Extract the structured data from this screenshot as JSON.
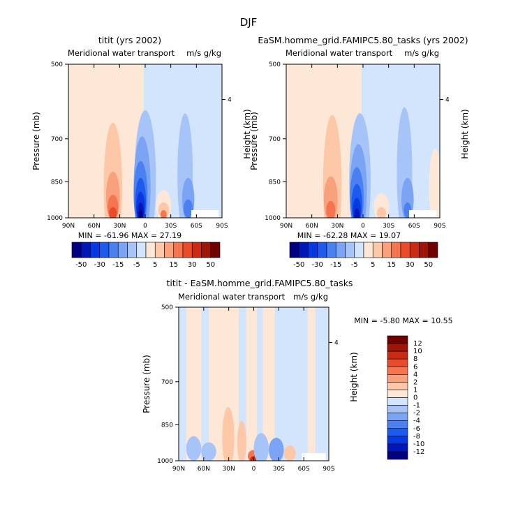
{
  "figure": {
    "title": "DJF"
  },
  "colors": {
    "neg": [
      "#000080",
      "#0018b8",
      "#0838df",
      "#1e5aeb",
      "#4a80f0",
      "#7ba4f4",
      "#a6c4f8",
      "#d3e5fc"
    ],
    "pos": [
      "#fde8d8",
      "#fcc8a8",
      "#f9a07c",
      "#f47550",
      "#e94b2b",
      "#c82a14",
      "#9e1408",
      "#700000"
    ]
  },
  "chart_data": [
    {
      "type": "heatmap",
      "id": "top-left",
      "title": "titit (yrs 2002)",
      "subtitle": "Meridional water transport",
      "units": "m/s g/kg",
      "xlabel": "",
      "ylabel": "Pressure (mb)",
      "ylabel_right": "Height (km)",
      "x_ticks": [
        "90N",
        "60N",
        "30N",
        "0",
        "30S",
        "60S",
        "90S"
      ],
      "y_ticks": [
        "500",
        "700",
        "850",
        "1000"
      ],
      "y_ticks_right": [
        "4"
      ],
      "ylim": [
        1000,
        500
      ],
      "y_scale": "log",
      "stats": "MIN = -61.96   MAX =  27.19",
      "colorbar_labels": [
        "-50",
        "-30",
        "-15",
        "-5",
        "5",
        "15",
        "30",
        "50"
      ],
      "colorbar_levels": [
        -50,
        -40,
        -30,
        -20,
        -15,
        -10,
        -5,
        -1,
        1,
        5,
        10,
        15,
        20,
        30,
        40,
        50
      ]
    },
    {
      "type": "heatmap",
      "id": "top-right",
      "title": "EaSM.homme_grid.FAMIPC5.80_tasks (yrs 2002)",
      "subtitle": "Meridional water transport",
      "units": "m/s g/kg",
      "xlabel": "",
      "ylabel": "Pressure (mb)",
      "ylabel_right": "Height (km)",
      "x_ticks": [
        "90N",
        "60N",
        "30N",
        "0",
        "30S",
        "60S",
        "90S"
      ],
      "y_ticks": [
        "500",
        "700",
        "850",
        "1000"
      ],
      "y_ticks_right": [
        "4"
      ],
      "ylim": [
        1000,
        500
      ],
      "y_scale": "log",
      "stats": "MIN = -62.28   MAX =  19.07",
      "colorbar_labels": [
        "-50",
        "-30",
        "-15",
        "-5",
        "5",
        "15",
        "30",
        "50"
      ],
      "colorbar_levels": [
        -50,
        -40,
        -30,
        -20,
        -15,
        -10,
        -5,
        -1,
        1,
        5,
        10,
        15,
        20,
        30,
        40,
        50
      ]
    },
    {
      "type": "heatmap",
      "id": "bottom-diff",
      "title": "titit - EaSM.homme_grid.FAMIPC5.80_tasks",
      "subtitle": "Meridional water transport",
      "units": "m/s g/kg",
      "xlabel": "",
      "ylabel": "Pressure (mb)",
      "ylabel_right": "Height (km)",
      "x_ticks": [
        "90N",
        "60N",
        "30N",
        "0",
        "30S",
        "60S",
        "90S"
      ],
      "y_ticks": [
        "500",
        "700",
        "850",
        "1000"
      ],
      "y_ticks_right": [
        "4"
      ],
      "ylim": [
        1000,
        500
      ],
      "y_scale": "log",
      "stats": "MIN =  -5.80   MAX =  10.55",
      "colorbar_labels": [
        "12",
        "10",
        "8",
        "6",
        "4",
        "2",
        "1",
        "0",
        "-1",
        "-2",
        "-4",
        "-6",
        "-8",
        "-10",
        "-12"
      ],
      "colorbar_levels": [
        -12,
        -10,
        -8,
        -6,
        -4,
        -2,
        -1,
        0,
        1,
        2,
        4,
        6,
        8,
        10,
        12
      ]
    }
  ]
}
